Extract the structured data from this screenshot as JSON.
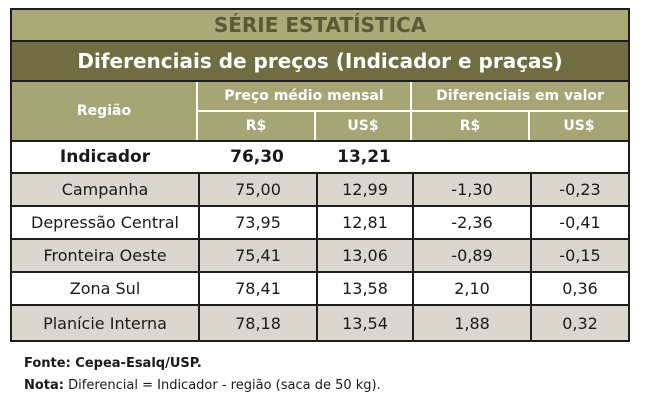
{
  "table": {
    "title": "SÉRIE ESTATÍSTICA",
    "subtitle": "Diferenciais de preços (Indicador e praças)",
    "headers": {
      "regiao": "Região",
      "preco_medio": "Preço médio mensal",
      "diferenciais": "Diferenciais em valor",
      "rs": "R$",
      "uss": "US$"
    },
    "indicator": {
      "label": "Indicador",
      "price_rs": "76,30",
      "price_usd": "13,21"
    },
    "rows": [
      {
        "region": "Campanha",
        "price_rs": "75,00",
        "price_usd": "12,99",
        "diff_rs": "-1,30",
        "diff_usd": "-0,23"
      },
      {
        "region": "Depressão Central",
        "price_rs": "73,95",
        "price_usd": "12,81",
        "diff_rs": "-2,36",
        "diff_usd": "-0,41"
      },
      {
        "region": "Fronteira Oeste",
        "price_rs": "75,41",
        "price_usd": "13,06",
        "diff_rs": "-0,89",
        "diff_usd": "-0,15"
      },
      {
        "region": "Zona Sul",
        "price_rs": "78,41",
        "price_usd": "13,58",
        "diff_rs": "2,10",
        "diff_usd": "0,36"
      },
      {
        "region": "Planície Interna",
        "price_rs": "78,18",
        "price_usd": "13,54",
        "diff_rs": "1,88",
        "diff_usd": "0,32"
      }
    ]
  },
  "footer": {
    "source": "Fonte: Cepea-Esalq/USP.",
    "note_label": "Nota:",
    "note_text": " Diferencial = Indicador - região (saca de 50 kg)."
  }
}
